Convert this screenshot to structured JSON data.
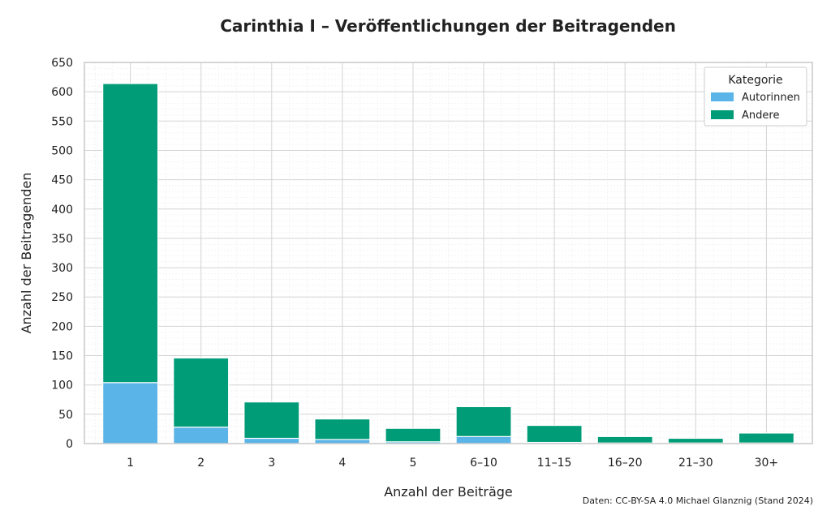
{
  "chart_data": {
    "type": "bar",
    "stacked": true,
    "title": "Carinthia I – Veröffentlichungen der Beitragenden",
    "xlabel": "Anzahl der Beiträge",
    "ylabel": "Anzahl der Beitragenden",
    "categories": [
      "1",
      "2",
      "3",
      "4",
      "5",
      "6–10",
      "11–15",
      "16–20",
      "21–30",
      "30+"
    ],
    "series": [
      {
        "name": "Autorinnen",
        "color": "#5ab4e8",
        "values": [
          104,
          28,
          9,
          7,
          3,
          12,
          2,
          1,
          1,
          1
        ]
      },
      {
        "name": "Andere",
        "color": "#009b77",
        "values": [
          510,
          118,
          62,
          35,
          23,
          51,
          29,
          11,
          8,
          17
        ]
      }
    ],
    "ylim": [
      0,
      650
    ],
    "yticks": [
      0,
      50,
      100,
      150,
      200,
      250,
      300,
      350,
      400,
      450,
      500,
      550,
      600,
      650
    ],
    "grid": true,
    "legend": {
      "title": "Kategorie",
      "position": "top-right"
    },
    "credit": "Daten: CC-BY-SA 4.0 Michael Glanznig (Stand 2024)"
  }
}
